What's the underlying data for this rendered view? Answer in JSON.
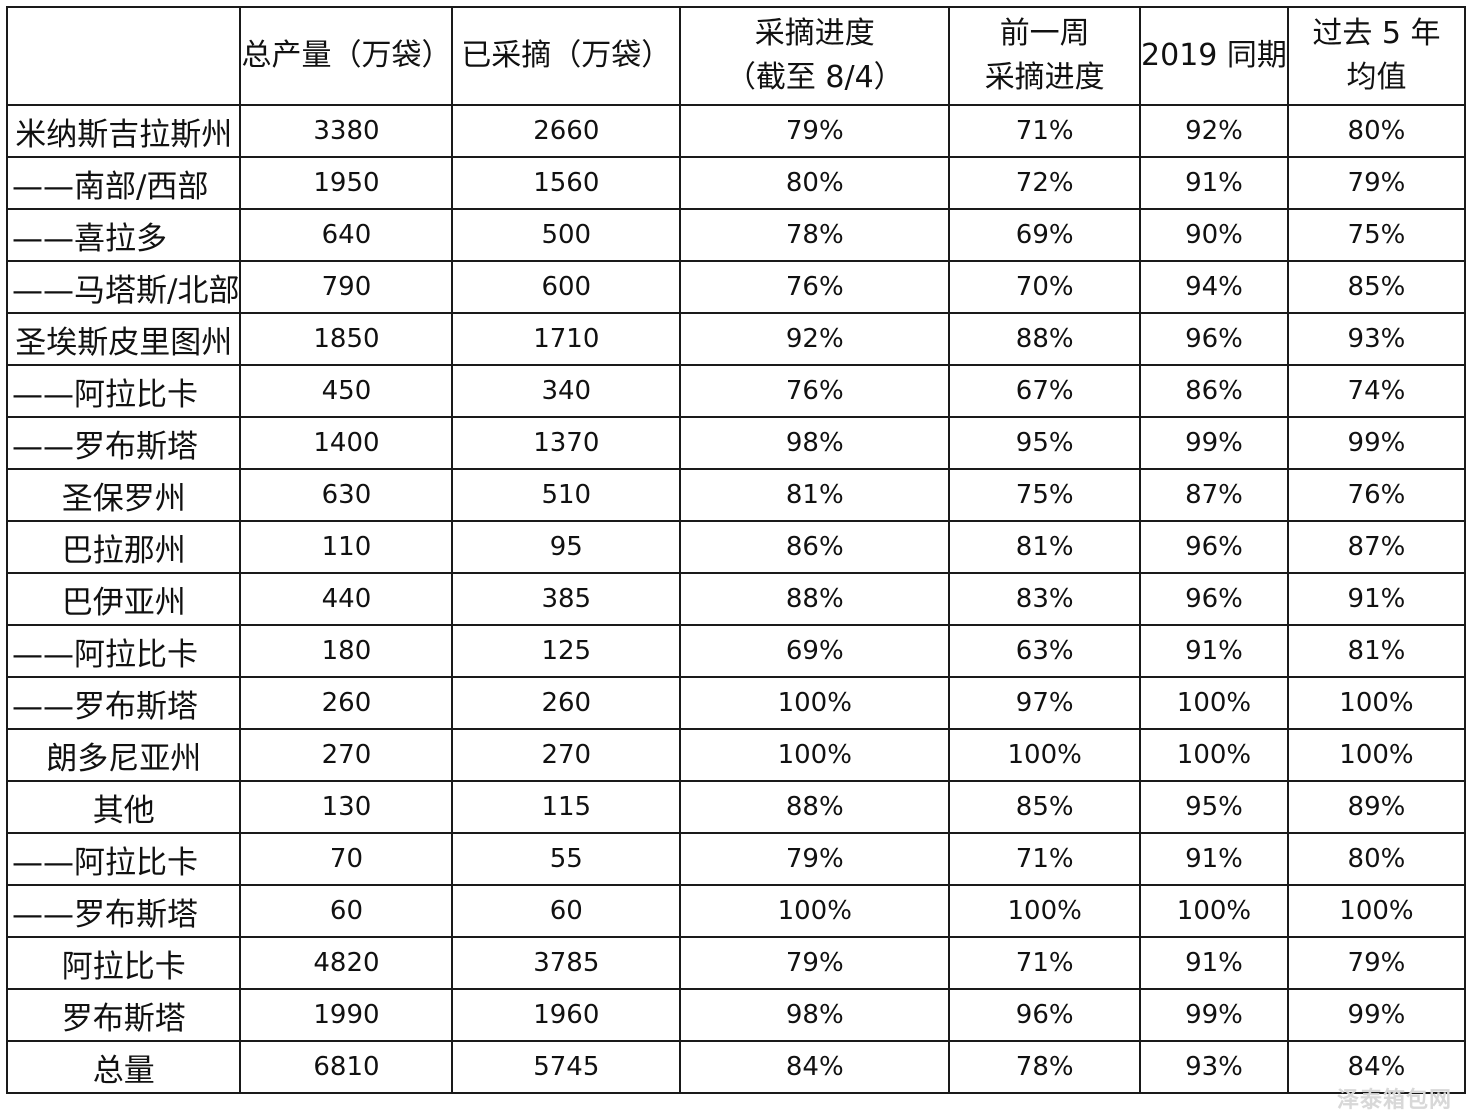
{
  "table": {
    "headers": [
      [
        ""
      ],
      [
        "总产量（万袋）"
      ],
      [
        "已采摘（万袋）"
      ],
      [
        "采摘进度",
        "（截至 8/4）"
      ],
      [
        "前一周",
        "采摘进度"
      ],
      [
        "2019 同期"
      ],
      [
        "过去 5 年",
        "均值"
      ]
    ],
    "rows": [
      {
        "region": "米纳斯吉拉斯州",
        "indent": false,
        "total": "3380",
        "picked": "2660",
        "progress": "79%",
        "prev_week": "71%",
        "y2019": "92%",
        "avg5": "80%"
      },
      {
        "region": "——南部/西部",
        "indent": true,
        "total": "1950",
        "picked": "1560",
        "progress": "80%",
        "prev_week": "72%",
        "y2019": "91%",
        "avg5": "79%"
      },
      {
        "region": "——喜拉多",
        "indent": true,
        "total": "640",
        "picked": "500",
        "progress": "78%",
        "prev_week": "69%",
        "y2019": "90%",
        "avg5": "75%"
      },
      {
        "region": "——马塔斯/北部",
        "indent": true,
        "total": "790",
        "picked": "600",
        "progress": "76%",
        "prev_week": "70%",
        "y2019": "94%",
        "avg5": "85%"
      },
      {
        "region": "圣埃斯皮里图州",
        "indent": false,
        "total": "1850",
        "picked": "1710",
        "progress": "92%",
        "prev_week": "88%",
        "y2019": "96%",
        "avg5": "93%"
      },
      {
        "region": "——阿拉比卡",
        "indent": true,
        "total": "450",
        "picked": "340",
        "progress": "76%",
        "prev_week": "67%",
        "y2019": "86%",
        "avg5": "74%"
      },
      {
        "region": "——罗布斯塔",
        "indent": true,
        "total": "1400",
        "picked": "1370",
        "progress": "98%",
        "prev_week": "95%",
        "y2019": "99%",
        "avg5": "99%"
      },
      {
        "region": "圣保罗州",
        "indent": false,
        "total": "630",
        "picked": "510",
        "progress": "81%",
        "prev_week": "75%",
        "y2019": "87%",
        "avg5": "76%"
      },
      {
        "region": "巴拉那州",
        "indent": false,
        "total": "110",
        "picked": "95",
        "progress": "86%",
        "prev_week": "81%",
        "y2019": "96%",
        "avg5": "87%"
      },
      {
        "region": "巴伊亚州",
        "indent": false,
        "total": "440",
        "picked": "385",
        "progress": "88%",
        "prev_week": "83%",
        "y2019": "96%",
        "avg5": "91%"
      },
      {
        "region": "——阿拉比卡",
        "indent": true,
        "total": "180",
        "picked": "125",
        "progress": "69%",
        "prev_week": "63%",
        "y2019": "91%",
        "avg5": "81%"
      },
      {
        "region": "——罗布斯塔",
        "indent": true,
        "total": "260",
        "picked": "260",
        "progress": "100%",
        "prev_week": "97%",
        "y2019": "100%",
        "avg5": "100%"
      },
      {
        "region": "朗多尼亚州",
        "indent": false,
        "total": "270",
        "picked": "270",
        "progress": "100%",
        "prev_week": "100%",
        "y2019": "100%",
        "avg5": "100%"
      },
      {
        "region": "其他",
        "indent": false,
        "total": "130",
        "picked": "115",
        "progress": "88%",
        "prev_week": "85%",
        "y2019": "95%",
        "avg5": "89%"
      },
      {
        "region": "——阿拉比卡",
        "indent": true,
        "total": "70",
        "picked": "55",
        "progress": "79%",
        "prev_week": "71%",
        "y2019": "91%",
        "avg5": "80%"
      },
      {
        "region": "——罗布斯塔",
        "indent": true,
        "total": "60",
        "picked": "60",
        "progress": "100%",
        "prev_week": "100%",
        "y2019": "100%",
        "avg5": "100%"
      },
      {
        "region": "阿拉比卡",
        "indent": false,
        "total": "4820",
        "picked": "3785",
        "progress": "79%",
        "prev_week": "71%",
        "y2019": "91%",
        "avg5": "79%"
      },
      {
        "region": "罗布斯塔",
        "indent": false,
        "total": "1990",
        "picked": "1960",
        "progress": "98%",
        "prev_week": "96%",
        "y2019": "99%",
        "avg5": "99%"
      },
      {
        "region": "总量",
        "indent": false,
        "total": "6810",
        "picked": "5745",
        "progress": "84%",
        "prev_week": "78%",
        "y2019": "93%",
        "avg5": "84%"
      }
    ]
  },
  "watermark": "泽泰箱包网"
}
